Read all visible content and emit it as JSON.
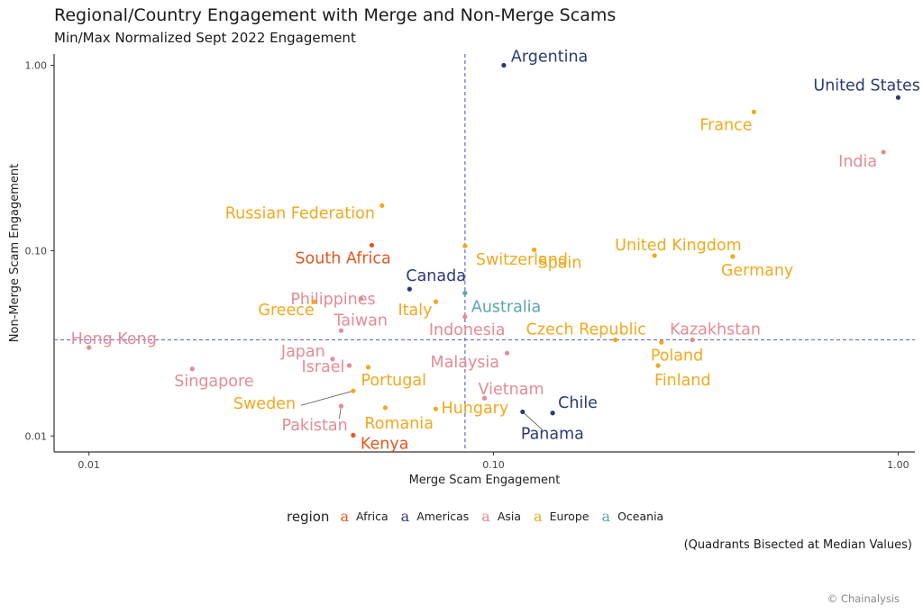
{
  "title": "Regional/Country Engagement with Merge and Non-Merge Scams",
  "subtitle": "Min/Max Normalized Sept 2022 Engagement",
  "note": "(Quadrants Bisected at Median Values)",
  "credit": "© Chainalysis",
  "colors": {
    "Africa": "#e2571e",
    "Americas": "#2b3a74",
    "Asia": "#e58a96",
    "Europe": "#f2a81d",
    "Oceania": "#5aa6b0",
    "median_line": "#5a5fc7",
    "axis": "#333333",
    "tick_text": "#444444"
  },
  "legend": {
    "title": "region",
    "key_glyph": "a",
    "items": [
      {
        "name": "Africa"
      },
      {
        "name": "Americas"
      },
      {
        "name": "Asia"
      },
      {
        "name": "Europe"
      },
      {
        "name": "Oceania"
      }
    ]
  },
  "chart_data": {
    "type": "scatter",
    "title": "Regional/Country Engagement with Merge and Non-Merge Scams",
    "subtitle": "Min/Max Normalized Sept 2022 Engagement",
    "xlabel": "Merge Scam Engagement",
    "ylabel": "Non-Merge Scam Engagement",
    "x_scale": "log10",
    "y_scale": "log10",
    "xlim": [
      0.0082,
      1.1
    ],
    "ylim": [
      0.0082,
      1.15
    ],
    "xticks": [
      {
        "value": 0.01,
        "label": "0.01"
      },
      {
        "value": 0.1,
        "label": "0.10"
      },
      {
        "value": 1.0,
        "label": "1.00"
      }
    ],
    "yticks": [
      {
        "value": 0.01,
        "label": "0.01"
      },
      {
        "value": 0.1,
        "label": "0.10"
      },
      {
        "value": 1.0,
        "label": "1.00"
      }
    ],
    "median_x": 0.085,
    "median_y": 0.033,
    "grid": false,
    "legend_position": "bottom",
    "points": [
      {
        "label": "Argentina",
        "region": "Americas",
        "x": 0.106,
        "y": 1.0
      },
      {
        "label": "United States",
        "region": "Americas",
        "x": 1.0,
        "y": 0.67
      },
      {
        "label": "France",
        "region": "Europe",
        "x": 0.44,
        "y": 0.56
      },
      {
        "label": "India",
        "region": "Asia",
        "x": 0.92,
        "y": 0.34
      },
      {
        "label": "Russian Federation",
        "region": "Europe",
        "x": 0.053,
        "y": 0.175
      },
      {
        "label": "Switzerland",
        "region": "Europe",
        "x": 0.085,
        "y": 0.106
      },
      {
        "label": "South Africa",
        "region": "Africa",
        "x": 0.05,
        "y": 0.107
      },
      {
        "label": "Spain",
        "region": "Europe",
        "x": 0.126,
        "y": 0.101
      },
      {
        "label": "United Kingdom",
        "region": "Europe",
        "x": 0.25,
        "y": 0.094
      },
      {
        "label": "Germany",
        "region": "Europe",
        "x": 0.39,
        "y": 0.093
      },
      {
        "label": "Canada",
        "region": "Americas",
        "x": 0.062,
        "y": 0.062
      },
      {
        "label": "Australia",
        "region": "Oceania",
        "x": 0.085,
        "y": 0.059
      },
      {
        "label": "Philippines",
        "region": "Asia",
        "x": 0.047,
        "y": 0.055
      },
      {
        "label": "Italy",
        "region": "Europe",
        "x": 0.072,
        "y": 0.053
      },
      {
        "label": "Greece",
        "region": "Europe",
        "x": 0.036,
        "y": 0.053
      },
      {
        "label": "Indonesia",
        "region": "Asia",
        "x": 0.085,
        "y": 0.044
      },
      {
        "label": "Taiwan",
        "region": "Asia",
        "x": 0.042,
        "y": 0.037
      },
      {
        "label": "Hong Kong",
        "region": "Asia",
        "x": 0.01,
        "y": 0.03
      },
      {
        "label": "Czech Republic",
        "region": "Europe",
        "x": 0.2,
        "y": 0.033
      },
      {
        "label": "Kazakhstan",
        "region": "Asia",
        "x": 0.31,
        "y": 0.033
      },
      {
        "label": "Poland",
        "region": "Europe",
        "x": 0.26,
        "y": 0.032
      },
      {
        "label": "Japan",
        "region": "Asia",
        "x": 0.04,
        "y": 0.026
      },
      {
        "label": "Malaysia",
        "region": "Asia",
        "x": 0.108,
        "y": 0.028
      },
      {
        "label": "Finland",
        "region": "Europe",
        "x": 0.255,
        "y": 0.024
      },
      {
        "label": "Singapore",
        "region": "Asia",
        "x": 0.018,
        "y": 0.023
      },
      {
        "label": "Israel",
        "region": "Asia",
        "x": 0.044,
        "y": 0.024
      },
      {
        "label": "Portugal",
        "region": "Europe",
        "x": 0.049,
        "y": 0.0235
      },
      {
        "label": "Vietnam",
        "region": "Asia",
        "x": 0.095,
        "y": 0.016
      },
      {
        "label": "Chile",
        "region": "Americas",
        "x": 0.14,
        "y": 0.0133
      },
      {
        "label": "Sweden",
        "region": "Europe",
        "x": 0.045,
        "y": 0.0175
      },
      {
        "label": "Hungary",
        "region": "Europe",
        "x": 0.072,
        "y": 0.014
      },
      {
        "label": "Panama",
        "region": "Americas",
        "x": 0.118,
        "y": 0.0135
      },
      {
        "label": "Pakistan",
        "region": "Asia",
        "x": 0.042,
        "y": 0.0145
      },
      {
        "label": "Romania",
        "region": "Europe",
        "x": 0.054,
        "y": 0.0142
      },
      {
        "label": "Kenya",
        "region": "Africa",
        "x": 0.045,
        "y": 0.0101
      }
    ]
  }
}
